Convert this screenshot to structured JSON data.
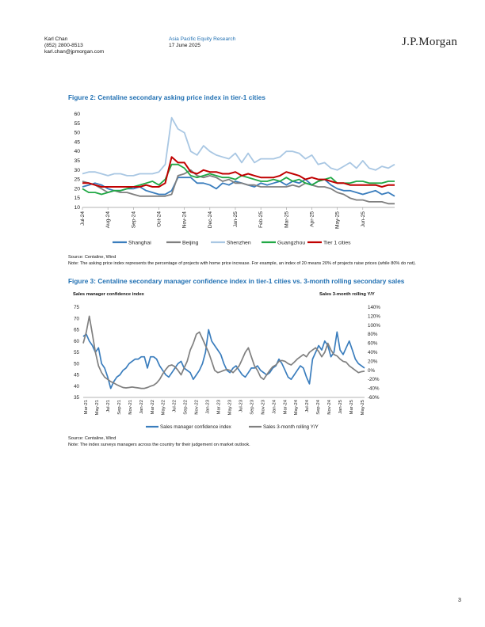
{
  "header": {
    "author_name": "Karl Chan",
    "author_phone": "(852) 2800-8513",
    "author_email": "karl.chan@jpmorgan.com",
    "department": "Asia Pacific Equity Research",
    "date": "17 June 2025",
    "brand": "J.P.Morgan"
  },
  "figure2": {
    "title": "Figure 2: Centaline secondary asking price index in tier-1 cities",
    "source": "Source: Centaline, Wind",
    "note": "Note: The asking price index represents the percentage of projects with home price increase. For example, an index of 20 means 20% of projects raise prices (while 80% do not)."
  },
  "figure3": {
    "title": "Figure 3: Centaline secondary manager confidence index in tier-1 cities vs. 3-month rolling secondary sales",
    "left_axis_title": "Sales manager confidence index",
    "right_axis_title": "Sales 3-month rolling Y/Y",
    "source": "Source: Centaline, Wind",
    "note": "Note: The index surveys managers across the country for their judgement on market outlook."
  },
  "page_number": "3",
  "chart_data": [
    {
      "type": "line",
      "title": "Figure 2: Centaline secondary asking price index in tier-1 cities",
      "ylim": [
        10,
        60
      ],
      "yticks": [
        10,
        15,
        20,
        25,
        30,
        35,
        40,
        45,
        50,
        55,
        60
      ],
      "x_tick_labels": [
        "Jul-24",
        "Aug-24",
        "Sep-24",
        "Oct-24",
        "Nov-24",
        "Dec-24",
        "Jan-25",
        "Feb-25",
        "Mar-25",
        "Apr-25",
        "May-25",
        "Jun-25"
      ],
      "x_tick_positions": [
        0,
        4,
        8,
        12,
        16,
        20,
        24,
        28,
        32,
        36,
        40,
        44
      ],
      "grid": false,
      "legend_position": "bottom",
      "series": [
        {
          "name": "Shanghai",
          "color": "#3a7dbd",
          "values": [
            21,
            22,
            23,
            22,
            20,
            19,
            19,
            20,
            20,
            21,
            19,
            18,
            17,
            17,
            19,
            26,
            26,
            26,
            23,
            23,
            22,
            20,
            23,
            22,
            24,
            23,
            22,
            21,
            23,
            22,
            23,
            24,
            22,
            24,
            23,
            25,
            22,
            24,
            25,
            22,
            20,
            19,
            19,
            18,
            17,
            18,
            19,
            17,
            18,
            16
          ]
        },
        {
          "name": "Beijing",
          "color": "#7f7f7f",
          "values": [
            24,
            23,
            22,
            20,
            18,
            19,
            18,
            18,
            17,
            16,
            16,
            16,
            16,
            16,
            17,
            27,
            28,
            30,
            27,
            26,
            27,
            26,
            24,
            25,
            23,
            23,
            22,
            22,
            21,
            21,
            21,
            21,
            21,
            22,
            21,
            23,
            22,
            21,
            21,
            20,
            18,
            17,
            15,
            14,
            14,
            13,
            13,
            13,
            12,
            12
          ]
        },
        {
          "name": "Shenzhen",
          "color": "#a9c7e3",
          "values": [
            28,
            29,
            29,
            28,
            27,
            28,
            28,
            27,
            27,
            28,
            28,
            28,
            29,
            33,
            58,
            52,
            50,
            40,
            38,
            43,
            40,
            38,
            37,
            36,
            39,
            34,
            39,
            34,
            36,
            36,
            36,
            37,
            40,
            40,
            39,
            36,
            38,
            33,
            34,
            31,
            30,
            32,
            34,
            31,
            35,
            31,
            30,
            32,
            31,
            33
          ]
        },
        {
          "name": "Guangzhou",
          "color": "#21a845",
          "values": [
            20,
            18,
            18,
            17,
            18,
            19,
            19,
            20,
            21,
            22,
            23,
            24,
            22,
            25,
            33,
            33,
            31,
            27,
            26,
            27,
            28,
            27,
            26,
            26,
            25,
            27,
            26,
            25,
            24,
            24,
            25,
            24,
            26,
            24,
            25,
            23,
            22,
            24,
            25,
            26,
            23,
            23,
            23,
            24,
            24,
            23,
            23,
            23,
            24,
            24
          ]
        },
        {
          "name": "Tier 1 cities",
          "color": "#c00000",
          "values": [
            23,
            23,
            22,
            21,
            21,
            21,
            21,
            21,
            21,
            21,
            22,
            21,
            21,
            23,
            37,
            34,
            34,
            29,
            28,
            30,
            29,
            29,
            28,
            28,
            29,
            27,
            28,
            27,
            26,
            26,
            26,
            27,
            29,
            28,
            27,
            25,
            26,
            25,
            25,
            24,
            23,
            23,
            22,
            22,
            22,
            22,
            22,
            21,
            22,
            22
          ]
        }
      ]
    },
    {
      "type": "line",
      "title": "Figure 3: Centaline secondary manager confidence index in tier-1 cities vs. 3-month rolling secondary sales",
      "ylim": [
        35,
        75
      ],
      "yticks": [
        35,
        40,
        45,
        50,
        55,
        60,
        65,
        70,
        75
      ],
      "y2lim": [
        -60,
        140
      ],
      "y2ticks": [
        "-60%",
        "-40%",
        "-20%",
        "0%",
        "20%",
        "40%",
        "60%",
        "80%",
        "100%",
        "120%",
        "140%"
      ],
      "ylabel": "Sales manager confidence index",
      "y2label": "Sales 3-month rolling Y/Y",
      "x_tick_labels": [
        "Mar-21",
        "May-21",
        "Jul-21",
        "Sep-21",
        "Nov-21",
        "Jan-22",
        "Mar-22",
        "May-22",
        "Jul-22",
        "Sep-22",
        "Nov-22",
        "Jan-23",
        "Mar-23",
        "May-23",
        "Jul-23",
        "Sep-23",
        "Nov-23",
        "Jan-24",
        "Mar-24",
        "May-24",
        "Jul-24",
        "Sep-24",
        "Nov-24",
        "Jan-25",
        "Mar-25",
        "May-25"
      ],
      "legend_position": "bottom",
      "series": [
        {
          "name": "Sales manager confidence index",
          "color": "#3a7dbd",
          "axis": "left",
          "values": [
            62,
            63,
            60,
            58,
            55,
            57,
            50,
            48,
            44,
            39,
            42,
            44,
            45,
            47,
            48,
            50,
            51,
            52,
            52,
            53,
            53,
            48,
            53,
            53,
            52,
            49,
            47,
            45,
            44,
            46,
            48,
            50,
            51,
            48,
            47,
            46,
            43,
            45,
            47,
            50,
            55,
            65,
            60,
            58,
            56,
            54,
            50,
            47,
            46,
            48,
            49,
            47,
            45,
            44,
            46,
            48,
            48,
            49,
            47,
            46,
            45,
            46,
            48,
            49,
            52,
            50,
            47,
            44,
            43,
            45,
            47,
            49,
            48,
            44,
            41,
            52,
            55,
            58,
            56,
            60,
            58,
            53,
            55,
            64,
            56,
            54,
            57,
            60,
            56,
            52,
            50,
            49,
            48
          ]
        },
        {
          "name": "Sales 3-month rolling Y/Y",
          "color": "#808080",
          "axis": "right",
          "values": [
            60,
            85,
            120,
            80,
            40,
            10,
            -5,
            -15,
            -20,
            -25,
            -28,
            -32,
            -35,
            -38,
            -39,
            -38,
            -37,
            -38,
            -39,
            -40,
            -40,
            -38,
            -35,
            -33,
            -28,
            -20,
            -8,
            2,
            10,
            12,
            8,
            0,
            -10,
            5,
            20,
            45,
            60,
            80,
            85,
            70,
            55,
            40,
            20,
            0,
            -5,
            -3,
            0,
            2,
            0,
            -5,
            2,
            10,
            25,
            40,
            50,
            30,
            10,
            0,
            -15,
            -20,
            -10,
            0,
            8,
            12,
            20,
            22,
            20,
            15,
            12,
            18,
            25,
            30,
            35,
            30,
            40,
            45,
            50,
            42,
            30,
            40,
            60,
            45,
            35,
            32,
            25,
            20,
            18,
            10,
            5,
            0,
            -5,
            -3,
            -2
          ]
        }
      ]
    }
  ]
}
